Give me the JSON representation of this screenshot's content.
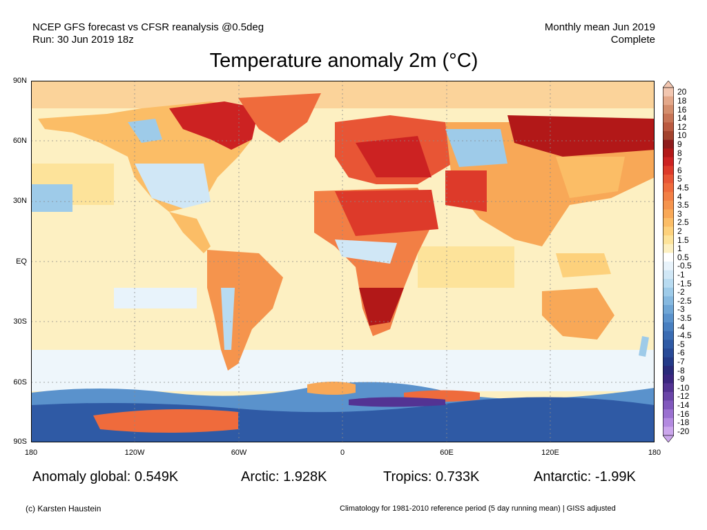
{
  "header": {
    "line1_left": "NCEP GFS forecast vs CFSR reanalysis @0.5deg",
    "line2_left": "Run: 30 Jun 2019 18z",
    "line1_right": "Monthly mean Jun 2019",
    "line2_right": "Complete"
  },
  "title": "Temperature anomaly 2m (°C)",
  "axes": {
    "lat_ticks": [
      "90N",
      "60N",
      "30N",
      "EQ",
      "30S",
      "60S",
      "90S"
    ],
    "lon_ticks": [
      "180",
      "120W",
      "60W",
      "0",
      "60E",
      "120E",
      "180"
    ]
  },
  "colorbar": {
    "levels": [
      "20",
      "18",
      "16",
      "14",
      "12",
      "10",
      "9",
      "8",
      "7",
      "6",
      "5",
      "4.5",
      "4",
      "3.5",
      "3",
      "2.5",
      "2",
      "1.5",
      "1",
      "0.5",
      "-0.5",
      "-1",
      "-1.5",
      "-2",
      "-2.5",
      "-3",
      "-3.5",
      "-4",
      "-4.5",
      "-5",
      "-6",
      "-7",
      "-8",
      "-9",
      "-10",
      "-12",
      "-14",
      "-16",
      "-18",
      "-20"
    ],
    "colors": [
      "#f2c6b0",
      "#e4a88a",
      "#d48e6d",
      "#c77456",
      "#ba5a40",
      "#a3432d",
      "#8e1b1b",
      "#b21818",
      "#cc2222",
      "#dd3a2a",
      "#e85535",
      "#ef6b3c",
      "#f27f45",
      "#f5944d",
      "#f8a857",
      "#fbbd66",
      "#fdd17c",
      "#fde39a",
      "#fdf0c2",
      "#ffffff",
      "#e8f3fb",
      "#d0e7f6",
      "#b8dbf1",
      "#9ecbe9",
      "#86b9e0",
      "#6fa6d6",
      "#5a92cc",
      "#487fc0",
      "#3a6cb3",
      "#2f5aa5",
      "#284a97",
      "#243a88",
      "#2a2a7a",
      "#3b2680",
      "#533393",
      "#6a45a8",
      "#8158bd",
      "#9a70d0",
      "#b38ae0",
      "#cba6ec"
    ]
  },
  "stats": {
    "global": "Anomaly global: 0.549K",
    "arctic": "Arctic: 1.928K",
    "tropics": "Tropics: 0.733K",
    "antarctic": "Antarctic: -1.99K"
  },
  "footer": {
    "credit": "(c) Karsten Haustein",
    "note": "Climatology for 1981-2010 reference period (5 day running mean) | GISS adjusted"
  }
}
